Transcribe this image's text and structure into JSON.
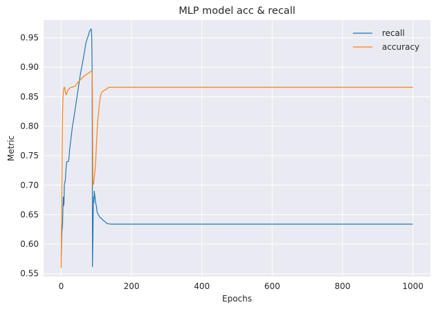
{
  "chart_data": {
    "type": "line",
    "title": "MLP model acc & recall",
    "xlabel": "Epochs",
    "ylabel": "Metric",
    "xlim": [
      -50,
      1050
    ],
    "ylim": [
      0.545,
      0.98
    ],
    "xticks": [
      0,
      200,
      400,
      600,
      800,
      1000
    ],
    "yticks": [
      0.55,
      0.6,
      0.65,
      0.7,
      0.75,
      0.8,
      0.85,
      0.9,
      0.95
    ],
    "grid": true,
    "legend_position": "top-right",
    "series": [
      {
        "name": "recall",
        "color": "#1f77b4",
        "x": [
          0,
          2,
          4,
          5,
          6,
          7,
          8,
          9,
          10,
          11,
          12,
          13,
          14,
          16,
          18,
          20,
          22,
          24,
          26,
          28,
          30,
          32,
          35,
          40,
          45,
          50,
          55,
          60,
          63,
          66,
          70,
          72,
          75,
          78,
          80,
          82,
          85,
          86,
          87,
          88,
          88.5,
          89,
          90,
          91,
          92,
          93,
          94,
          95,
          96,
          97,
          98,
          100,
          102,
          105,
          108,
          110,
          112,
          115,
          120,
          125,
          130,
          140,
          150,
          200,
          400,
          600,
          800,
          1000
        ],
        "y": [
          0.58,
          0.62,
          0.635,
          0.66,
          0.68,
          0.665,
          0.67,
          0.7,
          0.705,
          0.705,
          0.71,
          0.72,
          0.73,
          0.74,
          0.74,
          0.74,
          0.745,
          0.76,
          0.77,
          0.78,
          0.79,
          0.8,
          0.81,
          0.83,
          0.85,
          0.87,
          0.89,
          0.905,
          0.915,
          0.925,
          0.94,
          0.945,
          0.95,
          0.955,
          0.96,
          0.962,
          0.965,
          0.963,
          0.95,
          0.9,
          0.78,
          0.562,
          0.6,
          0.65,
          0.68,
          0.67,
          0.69,
          0.685,
          0.68,
          0.675,
          0.67,
          0.665,
          0.655,
          0.65,
          0.648,
          0.645,
          0.645,
          0.643,
          0.64,
          0.638,
          0.635,
          0.634,
          0.634,
          0.634,
          0.634,
          0.634,
          0.634,
          0.634
        ]
      },
      {
        "name": "accuracy",
        "color": "#ff7f0e",
        "x": [
          0,
          2,
          3,
          4,
          5,
          6,
          7,
          8,
          9,
          10,
          12,
          14,
          16,
          18,
          20,
          25,
          30,
          35,
          40,
          45,
          50,
          55,
          60,
          65,
          70,
          75,
          80,
          85,
          88,
          89,
          90,
          92,
          94,
          96,
          98,
          100,
          102,
          104,
          106,
          108,
          110,
          112,
          115,
          120,
          125,
          130,
          135,
          140,
          200,
          400,
          600,
          800,
          1000
        ],
        "y": [
          0.56,
          0.7,
          0.78,
          0.82,
          0.845,
          0.855,
          0.862,
          0.866,
          0.866,
          0.865,
          0.858,
          0.853,
          0.855,
          0.86,
          0.862,
          0.865,
          0.866,
          0.867,
          0.868,
          0.872,
          0.876,
          0.879,
          0.882,
          0.885,
          0.887,
          0.889,
          0.891,
          0.893,
          0.893,
          0.85,
          0.7,
          0.703,
          0.712,
          0.725,
          0.74,
          0.765,
          0.79,
          0.81,
          0.82,
          0.835,
          0.845,
          0.852,
          0.857,
          0.86,
          0.862,
          0.863,
          0.866,
          0.866,
          0.866,
          0.866,
          0.866,
          0.866,
          0.866
        ]
      }
    ]
  },
  "colors": {
    "background": "#ffffff",
    "plot_background": "#eaeaf2",
    "grid": "#ffffff",
    "text": "#262626"
  }
}
